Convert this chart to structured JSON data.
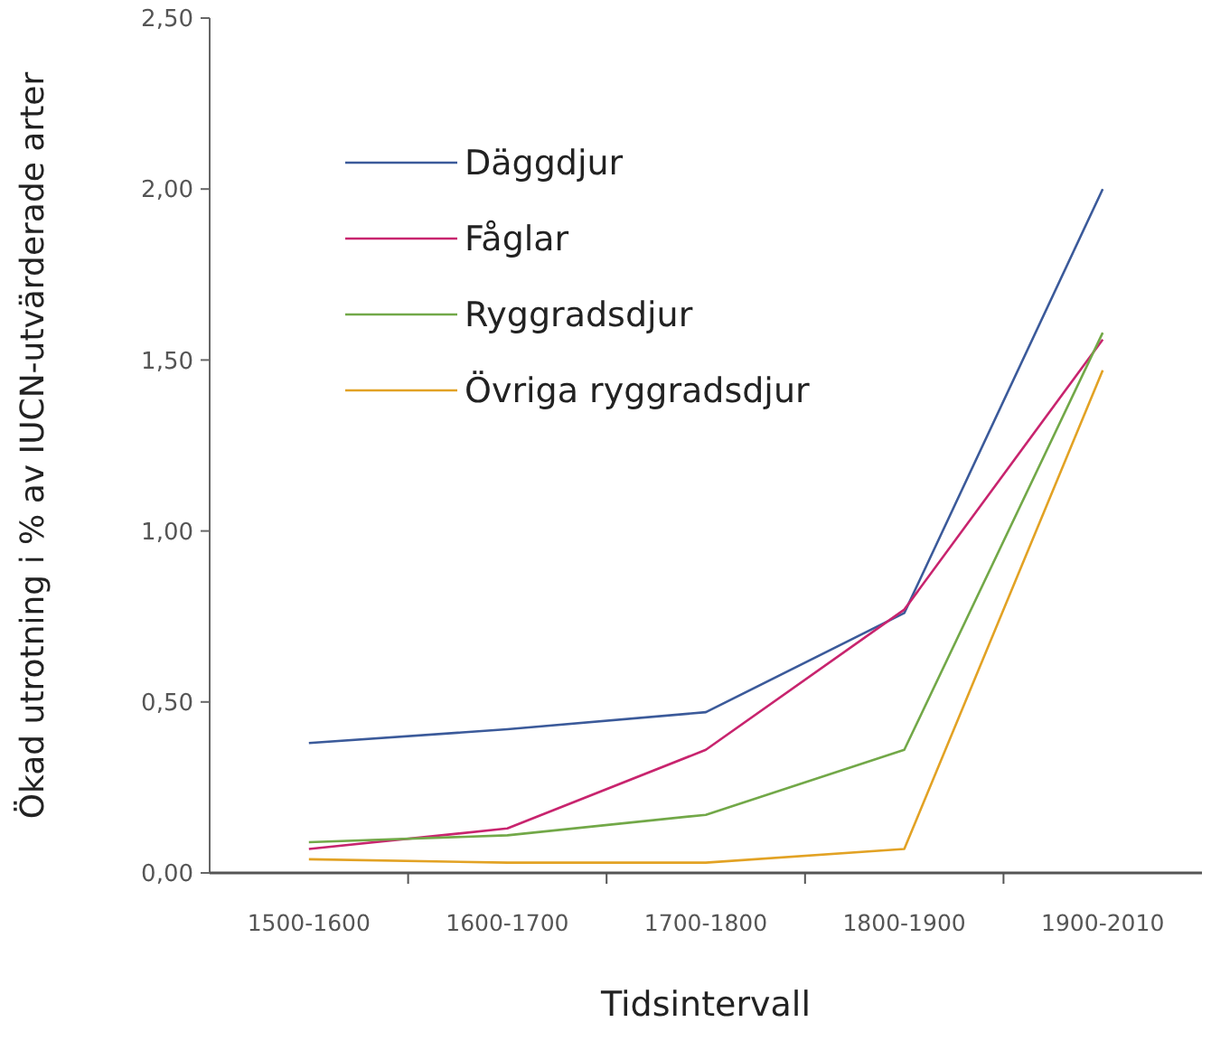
{
  "chart_data": {
    "type": "line",
    "xlabel": "Tidsintervall",
    "ylabel": "Ökad utrotning i % av IUCN-utvärderade arter",
    "categories": [
      "1500-1600",
      "1600-1700",
      "1700-1800",
      "1800-1900",
      "1900-2010"
    ],
    "series": [
      {
        "name": "Däggdjur",
        "color": "#3b5a9a",
        "values": [
          0.38,
          0.42,
          0.47,
          0.76,
          2.0
        ]
      },
      {
        "name": "Fåglar",
        "color": "#c8246e",
        "values": [
          0.07,
          0.13,
          0.36,
          0.77,
          1.56
        ]
      },
      {
        "name": "Ryggradsdjur",
        "color": "#72a848",
        "values": [
          0.09,
          0.11,
          0.17,
          0.36,
          1.58
        ]
      },
      {
        "name": "Övriga ryggradsdjur",
        "color": "#e2a224",
        "values": [
          0.04,
          0.03,
          0.03,
          0.07,
          1.47
        ]
      }
    ],
    "ylim": [
      0,
      2.5
    ],
    "yticks": [
      {
        "value": 0,
        "label": "0,00"
      },
      {
        "value": 0.5,
        "label": "0,50"
      },
      {
        "value": 1,
        "label": "1,00"
      },
      {
        "value": 1.5,
        "label": "1,50"
      },
      {
        "value": 2,
        "label": "2,00"
      },
      {
        "value": 2.5,
        "label": "2,50"
      }
    ],
    "grid": false,
    "legend": "top left",
    "marker": "none",
    "line_style": "solid"
  }
}
